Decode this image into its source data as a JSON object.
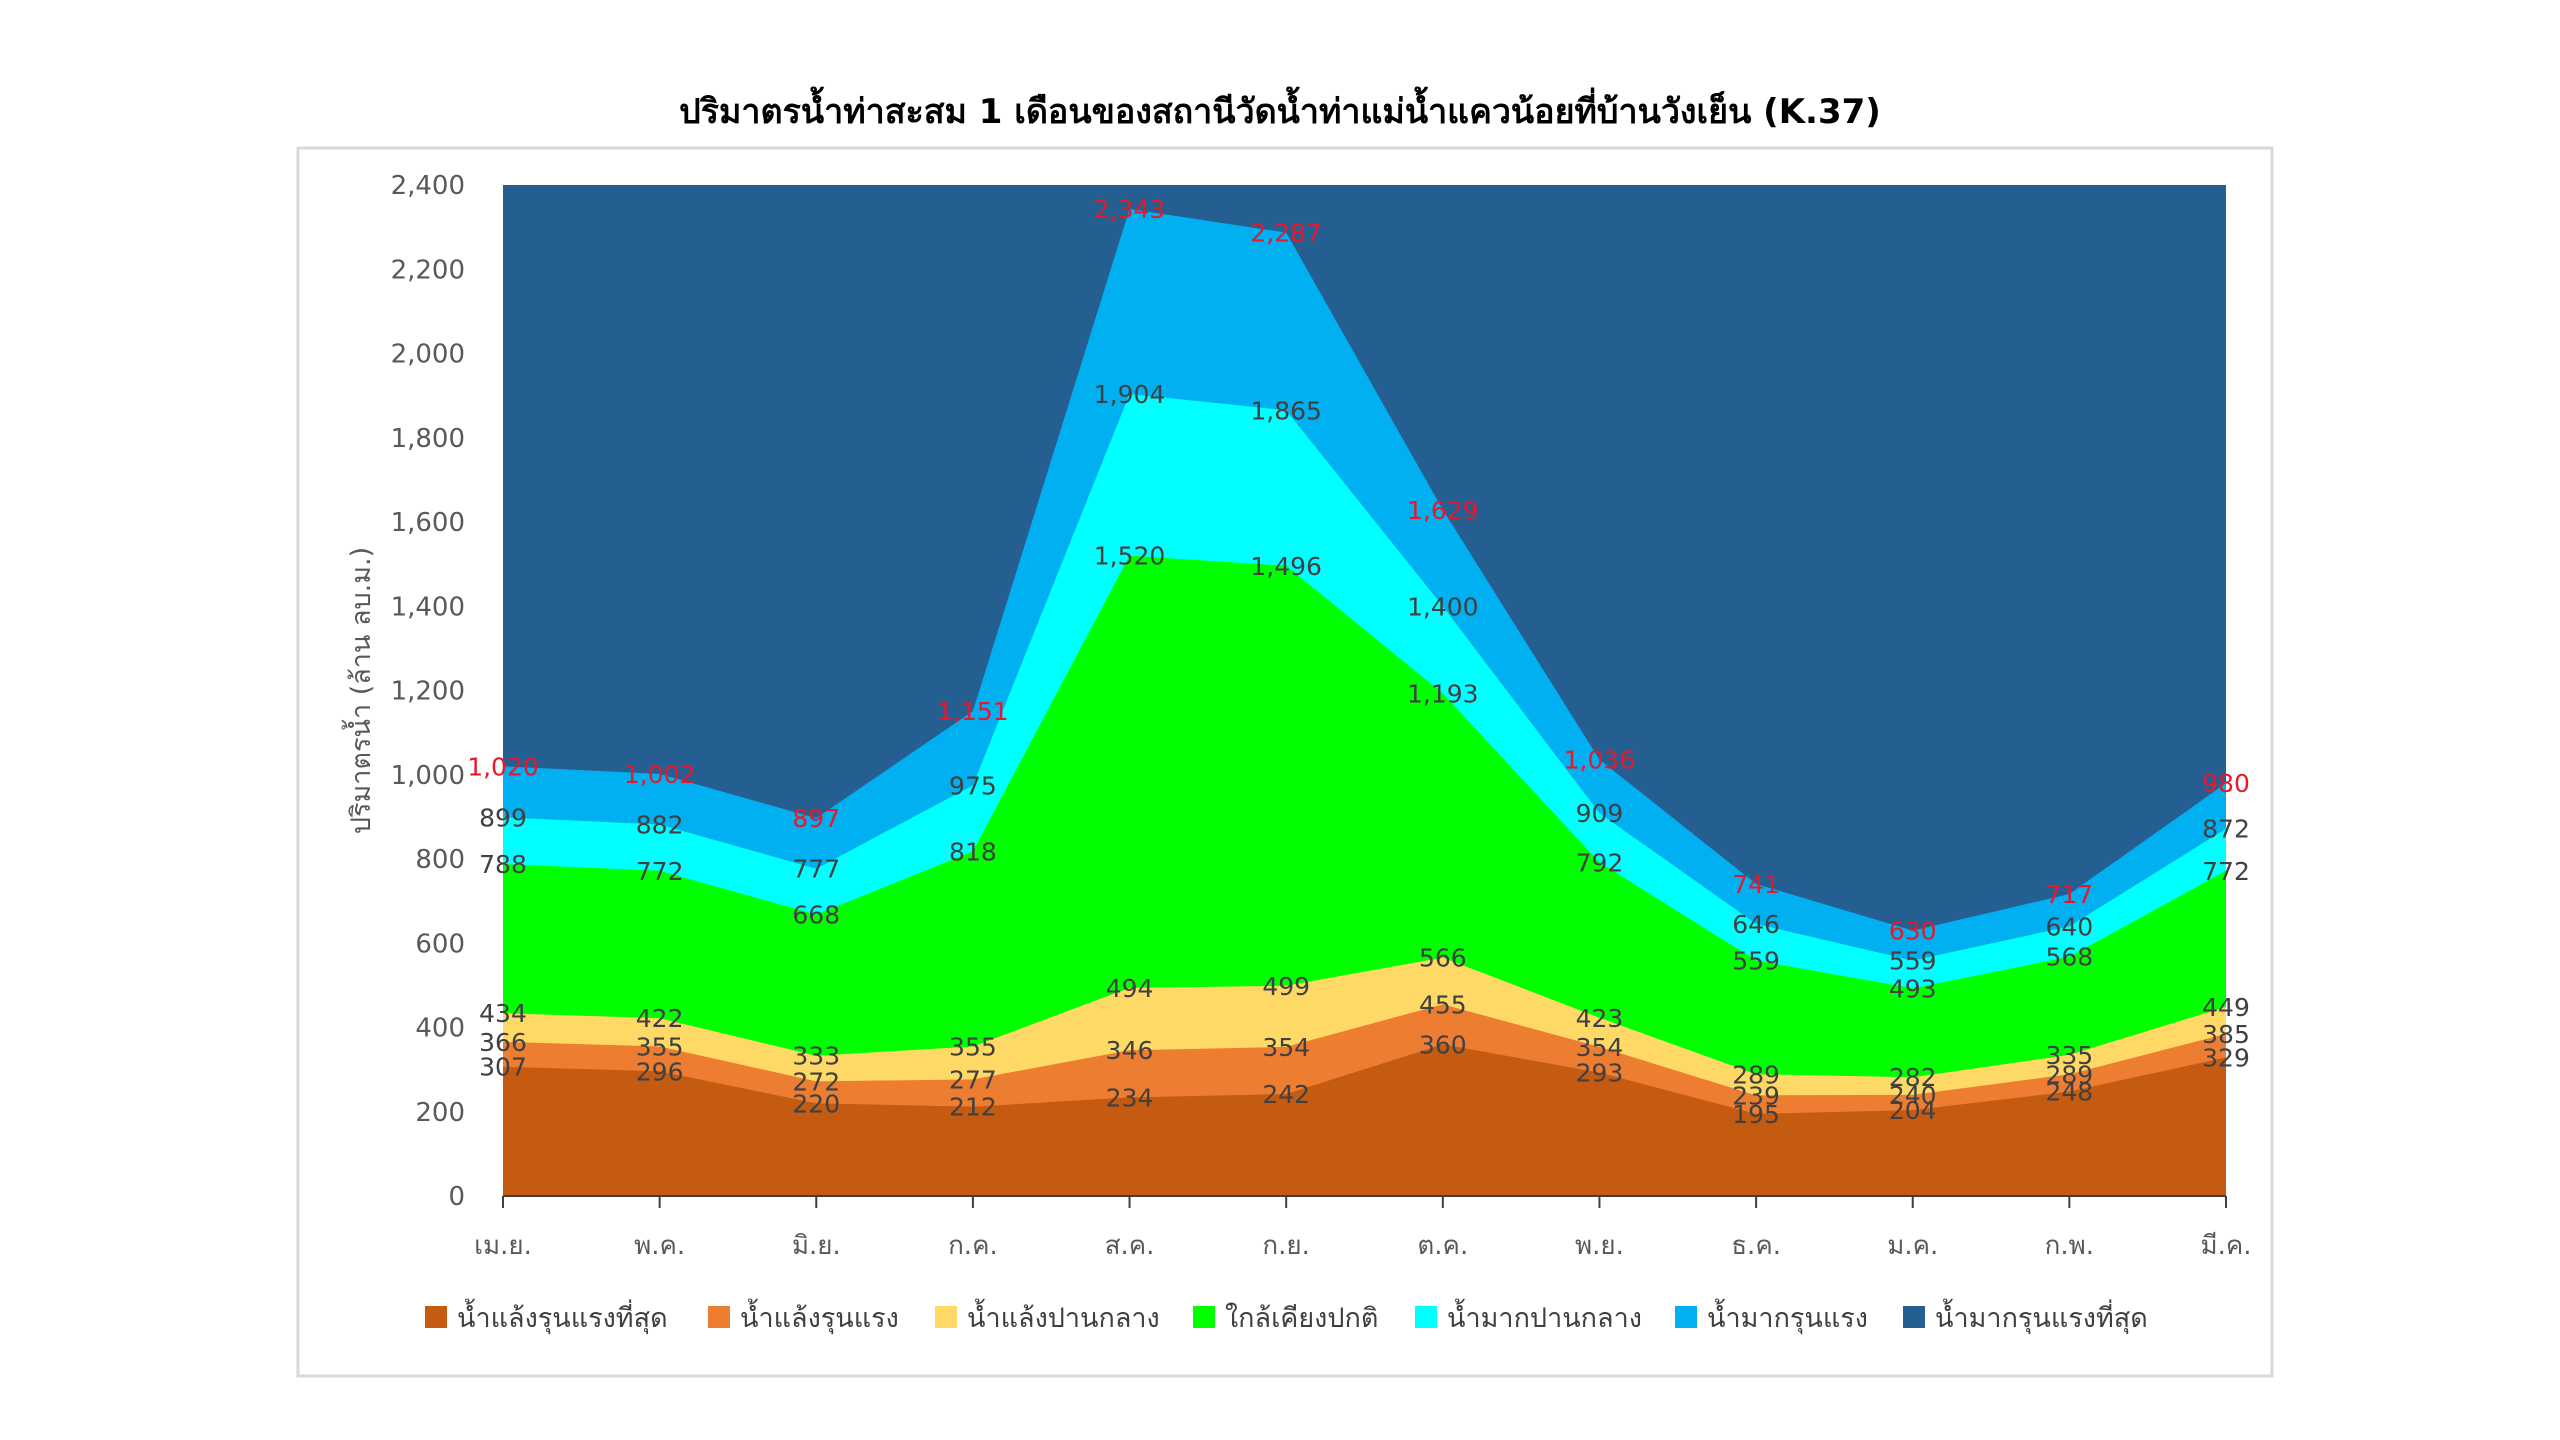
{
  "chart_data": {
    "type": "area",
    "stacked": false,
    "title": "ปริมาตรน้ำท่าสะสม 1 เดือนของสถานีวัดน้ำท่าแม่น้ำแควน้อยที่บ้านวังเย็น (K.37)",
    "ylabel": "ปริมาตรน้ำ (ล้าน ลบ.ม.)",
    "xlabel": "",
    "ylim": [
      0,
      2400
    ],
    "yticks": [
      "0",
      "200",
      "400",
      "600",
      "800",
      "1,000",
      "1,200",
      "1,400",
      "1,600",
      "1,800",
      "2,000",
      "2,200",
      "2,400"
    ],
    "ytick_values": [
      0,
      200,
      400,
      600,
      800,
      1000,
      1200,
      1400,
      1600,
      1800,
      2000,
      2200,
      2400
    ],
    "categories": [
      "เม.ย.",
      "พ.ค.",
      "มิ.ย.",
      "ก.ค.",
      "ส.ค.",
      "ก.ย.",
      "ต.ค.",
      "พ.ย.",
      "ธ.ค.",
      "ม.ค.",
      "ก.พ.",
      "มี.ค."
    ],
    "legend_position": "bottom",
    "grid": false,
    "series": [
      {
        "name": "น้ำแล้งรุนแรงที่สุด",
        "color": "#c55a11",
        "values": [
          307,
          296,
          220,
          212,
          234,
          242,
          360,
          293,
          195,
          204,
          248,
          329
        ],
        "labels": [
          "307",
          "296",
          "220",
          "212",
          "234",
          "242",
          "360",
          "293",
          "195",
          "204",
          "248",
          "329"
        ]
      },
      {
        "name": "น้ำแล้งรุนแรง",
        "color": "#ed7d31",
        "values": [
          366,
          355,
          272,
          277,
          346,
          354,
          455,
          354,
          239,
          240,
          289,
          385
        ],
        "labels": [
          "366",
          "355",
          "272",
          "277",
          "346",
          "354",
          "455",
          "354",
          "239",
          "240",
          "289",
          "385"
        ]
      },
      {
        "name": "น้ำแล้งปานกลาง",
        "color": "#ffd966",
        "values": [
          434,
          422,
          333,
          355,
          494,
          499,
          566,
          423,
          289,
          282,
          335,
          449
        ],
        "labels": [
          "434",
          "422",
          "333",
          "355",
          "494",
          "499",
          "566",
          "423",
          "289",
          "282",
          "335",
          "449"
        ]
      },
      {
        "name": "ใกล้เคียงปกติ",
        "color": "#00ff00",
        "values": [
          788,
          772,
          668,
          818,
          1520,
          1496,
          1193,
          792,
          559,
          493,
          568,
          772
        ],
        "labels": [
          "788",
          "772",
          "668",
          "818",
          "1,520",
          "1,496",
          "1,193",
          "792",
          "559",
          "493",
          "568",
          "772"
        ]
      },
      {
        "name": "น้ำมากปานกลาง",
        "color": "#00ffff",
        "values": [
          899,
          882,
          777,
          975,
          1904,
          1865,
          1400,
          909,
          646,
          559,
          640,
          872
        ],
        "labels": [
          "899",
          "882",
          "777",
          "975",
          "1,904",
          "1,865",
          "1,400",
          "909",
          "646",
          "559",
          "640",
          "872"
        ]
      },
      {
        "name": "น้ำมากรุนแรง",
        "color": "#00b0f0",
        "values": [
          1020,
          1002,
          897,
          1151,
          2343,
          2287,
          1629,
          1036,
          741,
          630,
          717,
          980
        ],
        "labels": [
          "1,020",
          "1,002",
          "897",
          "1,151",
          "2,343",
          "2,287",
          "1,629",
          "1,036",
          "741",
          "630",
          "717",
          "980"
        ]
      },
      {
        "name": "น้ำมากรุนแรงที่สุด",
        "color": "#255e91",
        "values": [
          2400,
          2400,
          2400,
          2400,
          2400,
          2400,
          2400,
          2400,
          2400,
          2400,
          2400,
          2400
        ]
      }
    ]
  }
}
